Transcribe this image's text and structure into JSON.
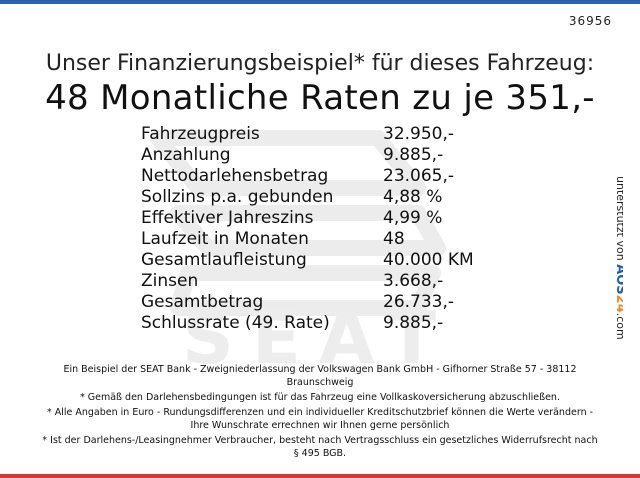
{
  "ref_number": "36956",
  "headline": "Unser Finanzierungsbeispiel* für dieses Fahrzeug:",
  "subheadline": "48 Monatliche Raten zu je 351,-",
  "rows": [
    {
      "label": "Fahrzeugpreis",
      "value": "32.950,-"
    },
    {
      "label": "Anzahlung",
      "value": "9.885,-"
    },
    {
      "label": "Nettodarlehensbetrag",
      "value": "23.065,-"
    },
    {
      "label": "Sollzins p.a. gebunden",
      "value": "4,88 %"
    },
    {
      "label": "Effektiver Jahreszins",
      "value": "4,99 %"
    },
    {
      "label": "Laufzeit in Monaten",
      "value": "48"
    },
    {
      "label": "Gesamtlaufleistung",
      "value": "40.000 KM"
    },
    {
      "label": "Zinsen",
      "value": "3.668,-"
    },
    {
      "label": "Gesamtbetrag",
      "value": "26.733,-"
    },
    {
      "label": "Schlussrate (49. Rate)",
      "value": "9.885,-"
    }
  ],
  "footnotes": [
    "Ein Beispiel der SEAT Bank - Zweigniederlassung der Volkswagen Bank GmbH - Gifhorner Straße 57 - 38112 Braunschweig",
    "* Gemäß den Darlehensbedingungen ist für das Fahrzeug eine Vollkaskoversicherung abzuschließen.",
    "* Alle Angaben in Euro - Rundungsdifferenzen und ein individueller Kreditschutzbrief können die Werte verändern - Ihre Wunschrate errechnen wir Ihnen gerne persönlich",
    "* Ist der Darlehens-/Leasingnehmer Verbraucher, besteht nach Vertragsschluss ein gesetzliches Widerrufsrecht nach § 495 BGB."
  ],
  "sponsor": {
    "prefix": "unterstützt von",
    "brand_a": "AOS",
    "brand_b": "24",
    "suffix": ".com"
  },
  "watermark_text": "SEAT",
  "colors": {
    "top_bar": "#2f5fb3",
    "bottom_bar": "#d33a2c",
    "watermark": "#ececec",
    "sponsor_blue": "#1a5fb4",
    "sponsor_orange": "#f28c1a"
  }
}
